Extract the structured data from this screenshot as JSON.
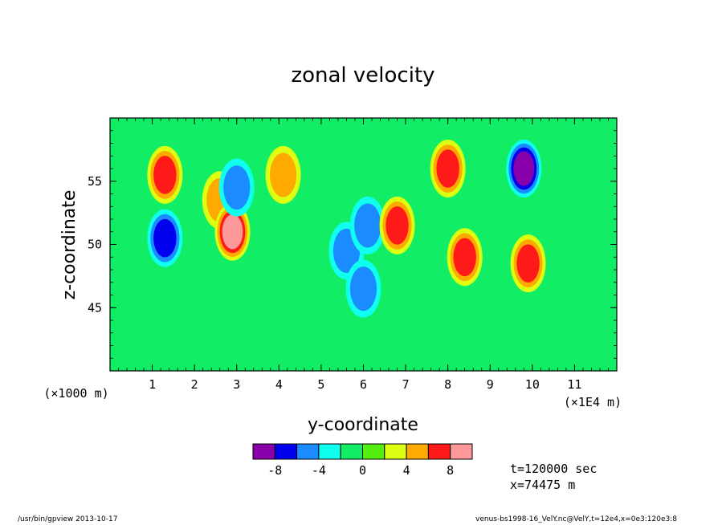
{
  "chart_data": {
    "type": "heatmap",
    "title": "zonal velocity",
    "xlabel": "y-coordinate",
    "ylabel": "z-coordinate",
    "x_unit_label": "(×1E4 m)",
    "y_unit_label": "(×1000 m)",
    "xlim": [
      0,
      12
    ],
    "ylim": [
      40,
      60
    ],
    "x_ticks": [
      "1",
      "2",
      "3",
      "4",
      "5",
      "6",
      "7",
      "8",
      "9",
      "10",
      "11"
    ],
    "y_ticks": [
      "45",
      "50",
      "55"
    ],
    "colorbar": {
      "levels": [
        -10,
        -8,
        -6,
        -4,
        -2,
        0,
        2,
        4,
        6,
        8,
        10
      ],
      "colors": [
        "#8800aa",
        "#0000ee",
        "#1a8cff",
        "#11ffee",
        "#11ee66",
        "#55ee11",
        "#ddff11",
        "#ffaa00",
        "#ff1a1a",
        "#ff9999"
      ],
      "tick_labels": [
        "-8",
        "-4",
        "0",
        "4",
        "8"
      ],
      "tick_values": [
        -8,
        -4,
        0,
        4,
        8
      ]
    },
    "background_color": "#11ee66",
    "features": [
      {
        "kind": "positive",
        "x": 1.3,
        "z": 55.5,
        "peak": 7
      },
      {
        "kind": "positive",
        "x": 2.6,
        "z": 53.5,
        "peak": 5
      },
      {
        "kind": "positive",
        "x": 2.9,
        "z": 51.0,
        "peak": 9
      },
      {
        "kind": "negative",
        "x": 3.0,
        "z": 54.5,
        "peak": -5
      },
      {
        "kind": "positive",
        "x": 4.1,
        "z": 55.5,
        "peak": 5
      },
      {
        "kind": "negative",
        "x": 5.6,
        "z": 49.5,
        "peak": -4
      },
      {
        "kind": "negative",
        "x": 6.1,
        "z": 51.5,
        "peak": -4
      },
      {
        "kind": "negative",
        "x": 6.0,
        "z": 46.5,
        "peak": -5
      },
      {
        "kind": "positive",
        "x": 6.8,
        "z": 51.5,
        "peak": 7
      },
      {
        "kind": "positive",
        "x": 8.0,
        "z": 56.0,
        "peak": 6
      },
      {
        "kind": "positive",
        "x": 8.4,
        "z": 49.0,
        "peak": 7
      },
      {
        "kind": "negative",
        "x": 9.8,
        "z": 56.0,
        "peak": -9
      },
      {
        "kind": "positive",
        "x": 9.9,
        "z": 48.5,
        "peak": 6
      },
      {
        "kind": "negative",
        "x": 1.3,
        "z": 50.5,
        "peak": -6
      }
    ]
  },
  "info": {
    "time": "t=120000 sec",
    "position": "x=74475 m"
  },
  "footer": {
    "left": "/usr/bin/gpview  2013-10-17",
    "right": "venus-bs1998-16_VelY.nc@VelY,t=12e4,x=0e3:120e3:8"
  }
}
